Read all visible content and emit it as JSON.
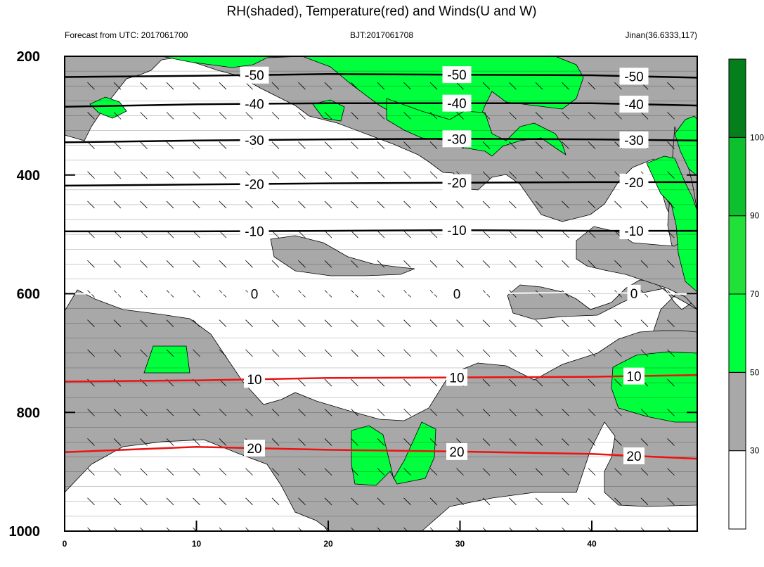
{
  "chart_data": {
    "type": "contour",
    "title": "RH(shaded), Temperature(red) and Winds(U and W)",
    "subtitle_left": "Forecast from UTC: 2017061700",
    "subtitle_center": "BJT:2017061708",
    "subtitle_right": "Jinan(36.6333,117)",
    "x_ticks": [
      "0",
      "10",
      "20",
      "30",
      "40"
    ],
    "x_tick_values": [
      0,
      10,
      20,
      30,
      40
    ],
    "xlim": [
      0,
      48
    ],
    "y_ticks": [
      "200",
      "400",
      "600",
      "800",
      "1000"
    ],
    "y_tick_values": [
      200,
      400,
      600,
      800,
      1000
    ],
    "ylim": [
      200,
      1000
    ],
    "colorbar": {
      "labels": [
        "30",
        "50",
        "70",
        "90",
        "100"
      ],
      "levels": [
        30,
        50,
        70,
        90,
        100
      ],
      "colors": [
        "#ffffff",
        "#a8a8a8",
        "#00ff3c",
        "#22e03a",
        "#0cc02e",
        "#057e1c"
      ]
    },
    "temperature_contours": [
      {
        "level": -50,
        "label": "-50",
        "color": "#000000",
        "points": [
          [
            0,
            235
          ],
          [
            10,
            233
          ],
          [
            20,
            230
          ],
          [
            30,
            231
          ],
          [
            40,
            232
          ],
          [
            48,
            236
          ]
        ]
      },
      {
        "level": -40,
        "label": "-40",
        "color": "#000000",
        "points": [
          [
            0,
            285
          ],
          [
            10,
            281
          ],
          [
            20,
            279
          ],
          [
            30,
            279
          ],
          [
            40,
            279
          ],
          [
            48,
            283
          ]
        ]
      },
      {
        "level": -30,
        "label": "-30",
        "color": "#000000",
        "points": [
          [
            0,
            345
          ],
          [
            10,
            342
          ],
          [
            20,
            340
          ],
          [
            30,
            339
          ],
          [
            40,
            340
          ],
          [
            48,
            342
          ]
        ]
      },
      {
        "level": -20,
        "label": "-20",
        "color": "#000000",
        "points": [
          [
            0,
            418
          ],
          [
            10,
            416
          ],
          [
            20,
            414
          ],
          [
            30,
            413
          ],
          [
            40,
            412
          ],
          [
            48,
            412
          ]
        ]
      },
      {
        "level": -10,
        "label": "-10",
        "color": "#000000",
        "points": [
          [
            0,
            495
          ],
          [
            10,
            495
          ],
          [
            20,
            494
          ],
          [
            30,
            493
          ],
          [
            40,
            494
          ],
          [
            48,
            494
          ]
        ]
      },
      {
        "level": 0,
        "label": "0",
        "color": "#ffffff",
        "points": [
          [
            0,
            600
          ],
          [
            10,
            600
          ],
          [
            20,
            600
          ],
          [
            30,
            600
          ],
          [
            40,
            598
          ],
          [
            48,
            601
          ]
        ]
      },
      {
        "level": 10,
        "label": "10",
        "color": "#ee1111",
        "points": [
          [
            0,
            748
          ],
          [
            10,
            746
          ],
          [
            20,
            742
          ],
          [
            30,
            741
          ],
          [
            40,
            740
          ],
          [
            48,
            737
          ]
        ]
      },
      {
        "level": 20,
        "label": "20",
        "color": "#ee1111",
        "points": [
          [
            0,
            867
          ],
          [
            10,
            858
          ],
          [
            20,
            863
          ],
          [
            30,
            866
          ],
          [
            40,
            870
          ],
          [
            48,
            878
          ]
        ]
      }
    ],
    "wind_barbs": "present",
    "shading": "RH"
  }
}
